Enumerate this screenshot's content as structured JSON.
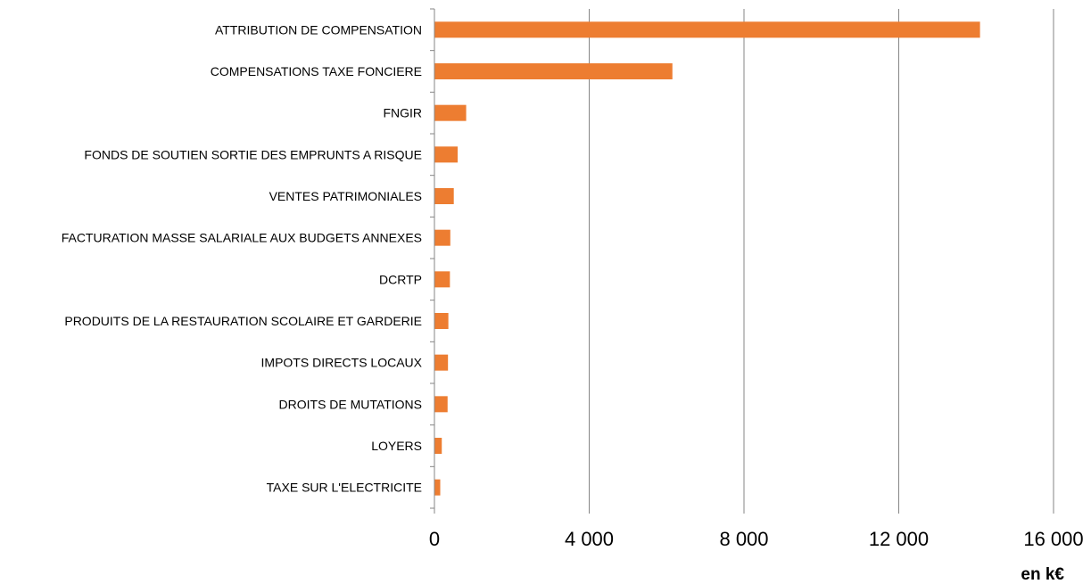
{
  "chart_data": {
    "type": "bar",
    "orientation": "horizontal",
    "categories": [
      "ATTRIBUTION DE COMPENSATION",
      "COMPENSATIONS TAXE FONCIERE",
      "FNGIR",
      "FONDS DE SOUTIEN SORTIE DES EMPRUNTS A RISQUE",
      "VENTES PATRIMONIALES",
      "FACTURATION MASSE SALARIALE AUX BUDGETS ANNEXES",
      "DCRTP",
      "PRODUITS DE LA RESTAURATION SCOLAIRE ET GARDERIE",
      "IMPOTS DIRECTS LOCAUX",
      "DROITS DE MUTATIONS",
      "LOYERS",
      "TAXE SUR L'ELECTRICITE"
    ],
    "values": [
      14100,
      6150,
      820,
      600,
      500,
      410,
      400,
      360,
      350,
      340,
      190,
      150
    ],
    "xlim": [
      0,
      16000
    ],
    "x_ticks": [
      0,
      4000,
      8000,
      12000,
      16000
    ],
    "x_tick_labels": [
      "0",
      "4 000",
      "8 000",
      "12 000",
      "16 000"
    ],
    "unit_label": "en k€",
    "grid": true,
    "colors": {
      "bar": "#ED7D31",
      "grid": "#868686",
      "axis": "#868686",
      "text": "#000000"
    }
  }
}
